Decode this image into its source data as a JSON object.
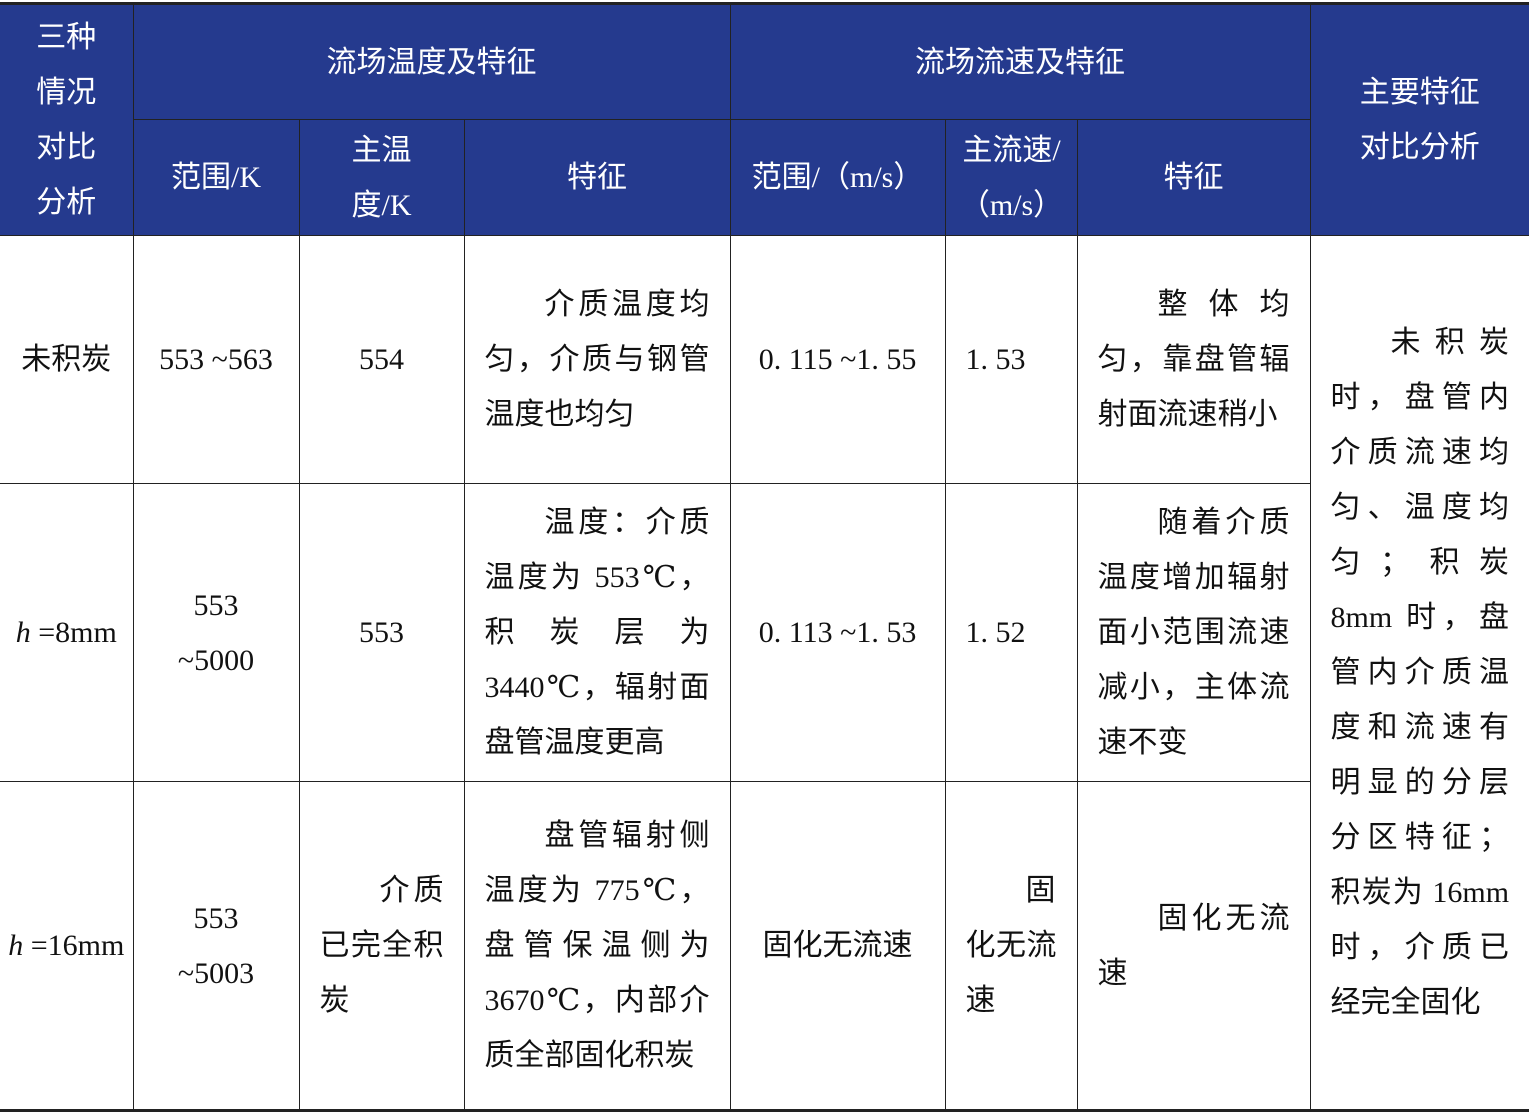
{
  "header": {
    "corner_top": "三种情况",
    "corner_bottom": "对比分析",
    "temp_group": "流场温度及特征",
    "vel_group": "流场流速及特征",
    "summary": "主要特征对比分析",
    "temp_range": "范围/K",
    "temp_main": "主温度/K",
    "temp_feature": "特征",
    "vel_range": "范围/（m/s）",
    "vel_main": "主流速/（m/s）",
    "vel_feature": "特征"
  },
  "header_color": "#253a8e",
  "rows": [
    {
      "case_var": "",
      "case": "未积炭",
      "temp_range": "553 ~563",
      "temp_main": "554",
      "temp_feature": "介质温度均匀，介质与钢管温度也均匀",
      "vel_range": "0. 115 ~1. 55",
      "vel_main": "1. 53",
      "vel_feature": "整体均匀，靠盘管辐射面流速稍小"
    },
    {
      "case_var": "h",
      "case": " =8mm",
      "temp_range": "553 ~5000",
      "temp_main": "553",
      "temp_feature": "温度：介质温度为 553℃，积炭层为 3440℃，辐射面盘管温度更高",
      "vel_range": "0. 113 ~1. 53",
      "vel_main": "1. 52",
      "vel_feature": "随着介质温度增加辐射面小范围流速减小，主体流速不变"
    },
    {
      "case_var": "h",
      "case": " =16mm",
      "temp_range": "553 ~5003",
      "temp_main": "介质已完全积炭",
      "temp_feature": "盘管辐射侧温度为 775℃，盘管保温侧为 3670℃，内部介质全部固化积炭",
      "vel_range": "固化无流速",
      "vel_main": "固化无流速",
      "vel_feature": "固化无流速"
    }
  ],
  "summary_text": "未积炭时，盘管内介质流速均匀、温度均匀；积炭 8mm 时，盘管内介质温度和流速有明显的分层分区特征；积炭为 16mm 时，介质已经完全固化"
}
